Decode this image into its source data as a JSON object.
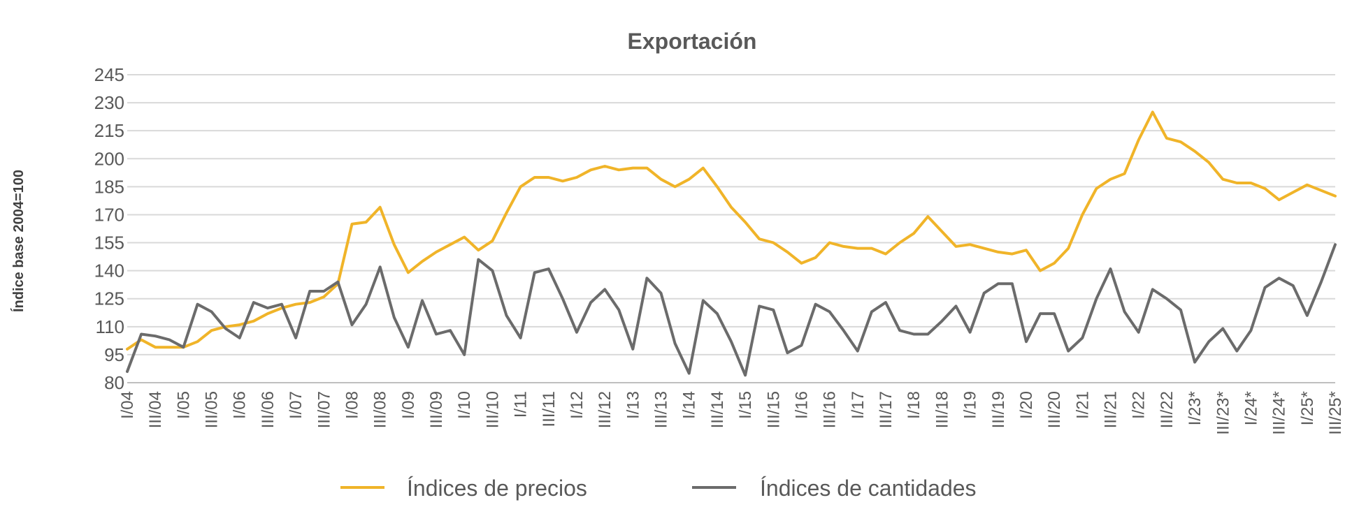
{
  "chart_data": {
    "type": "line",
    "title": "Exportación",
    "ylabel": "Índice base 2004=100",
    "xlabel": "",
    "ylim": [
      80,
      245
    ],
    "yticks": [
      80,
      95,
      110,
      125,
      140,
      155,
      170,
      185,
      200,
      215,
      230,
      245
    ],
    "grid": true,
    "legend_position": "bottom",
    "x": [
      "I/04",
      "II/04",
      "III/04",
      "IV/04",
      "I/05",
      "II/05",
      "III/05",
      "IV/05",
      "I/06",
      "II/06",
      "III/06",
      "IV/06",
      "I/07",
      "II/07",
      "III/07",
      "IV/07",
      "I/08",
      "II/08",
      "III/08",
      "IV/08",
      "I/09",
      "II/09",
      "III/09",
      "IV/09",
      "I/10",
      "II/10",
      "III/10",
      "IV/10",
      "I/11",
      "II/11",
      "III/11",
      "IV/11",
      "I/12",
      "II/12",
      "III/12",
      "IV/12",
      "I/13",
      "II/13",
      "III/13",
      "IV/13",
      "I/14",
      "II/14",
      "III/14",
      "IV/14",
      "I/15",
      "II/15",
      "III/15",
      "IV/15",
      "I/16",
      "II/16",
      "III/16",
      "IV/16",
      "I/17",
      "II/17",
      "III/17",
      "IV/17",
      "I/18",
      "II/18",
      "III/18",
      "IV/18",
      "I/19",
      "II/19",
      "III/19",
      "IV/19",
      "I/20",
      "II/20",
      "III/20",
      "IV/20",
      "I/21",
      "II/21",
      "III/21",
      "IV/21",
      "I/22",
      "II/22",
      "III/22",
      "IV/22",
      "I/23*",
      "II/23*",
      "III/23*",
      "IV/23*",
      "I/24*",
      "II/24*",
      "III/24*",
      "IV/24*",
      "I/25*",
      "II/25*",
      "III/25*"
    ],
    "xtick_labels": [
      "I/04",
      "III/04",
      "I/05",
      "III/05",
      "I/06",
      "III/06",
      "I/07",
      "III/07",
      "I/08",
      "III/08",
      "I/09",
      "III/09",
      "I/10",
      "III/10",
      "I/11",
      "III/11",
      "I/12",
      "III/12",
      "I/13",
      "III/13",
      "I/14",
      "III/14",
      "I/15",
      "III/15",
      "I/16",
      "III/16",
      "I/17",
      "III/17",
      "I/18",
      "III/18",
      "I/19",
      "III/19",
      "I/20",
      "III/20",
      "I/21",
      "III/21",
      "I/22",
      "III/22",
      "I/23*",
      "III/23*",
      "I/24*",
      "III/24*",
      "I/25*",
      "III/25*"
    ],
    "series": [
      {
        "name": "Índices de precios",
        "color": "#f0b429",
        "values": [
          98,
          103,
          99,
          99,
          99,
          102,
          108,
          110,
          111,
          113,
          117,
          120,
          122,
          123,
          126,
          133,
          165,
          166,
          174,
          154,
          139,
          145,
          150,
          154,
          158,
          151,
          156,
          171,
          185,
          190,
          190,
          188,
          190,
          194,
          196,
          194,
          195,
          195,
          189,
          185,
          189,
          195,
          185,
          174,
          166,
          157,
          155,
          150,
          144,
          147,
          155,
          153,
          152,
          152,
          149,
          155,
          160,
          169,
          161,
          153,
          154,
          152,
          150,
          149,
          151,
          140,
          144,
          152,
          170,
          184,
          189,
          192,
          210,
          225,
          211,
          209,
          204,
          198,
          189,
          187,
          187,
          184,
          178,
          182,
          186,
          183,
          180
        ]
      },
      {
        "name": "Índices de cantidades",
        "color": "#6b6b6b",
        "values": [
          86,
          106,
          105,
          103,
          99,
          122,
          118,
          109,
          104,
          123,
          120,
          122,
          104,
          129,
          129,
          134,
          111,
          122,
          142,
          115,
          99,
          124,
          106,
          108,
          95,
          146,
          140,
          116,
          104,
          139,
          141,
          125,
          107,
          123,
          130,
          119,
          98,
          136,
          128,
          101,
          85,
          124,
          117,
          102,
          84,
          121,
          119,
          96,
          100,
          122,
          118,
          108,
          97,
          118,
          123,
          108,
          106,
          106,
          113,
          121,
          107,
          128,
          133,
          133,
          102,
          117,
          117,
          97,
          104,
          125,
          141,
          118,
          107,
          130,
          125,
          119,
          91,
          102,
          109,
          97,
          108,
          131,
          136,
          132,
          116,
          134,
          154
        ]
      }
    ]
  }
}
